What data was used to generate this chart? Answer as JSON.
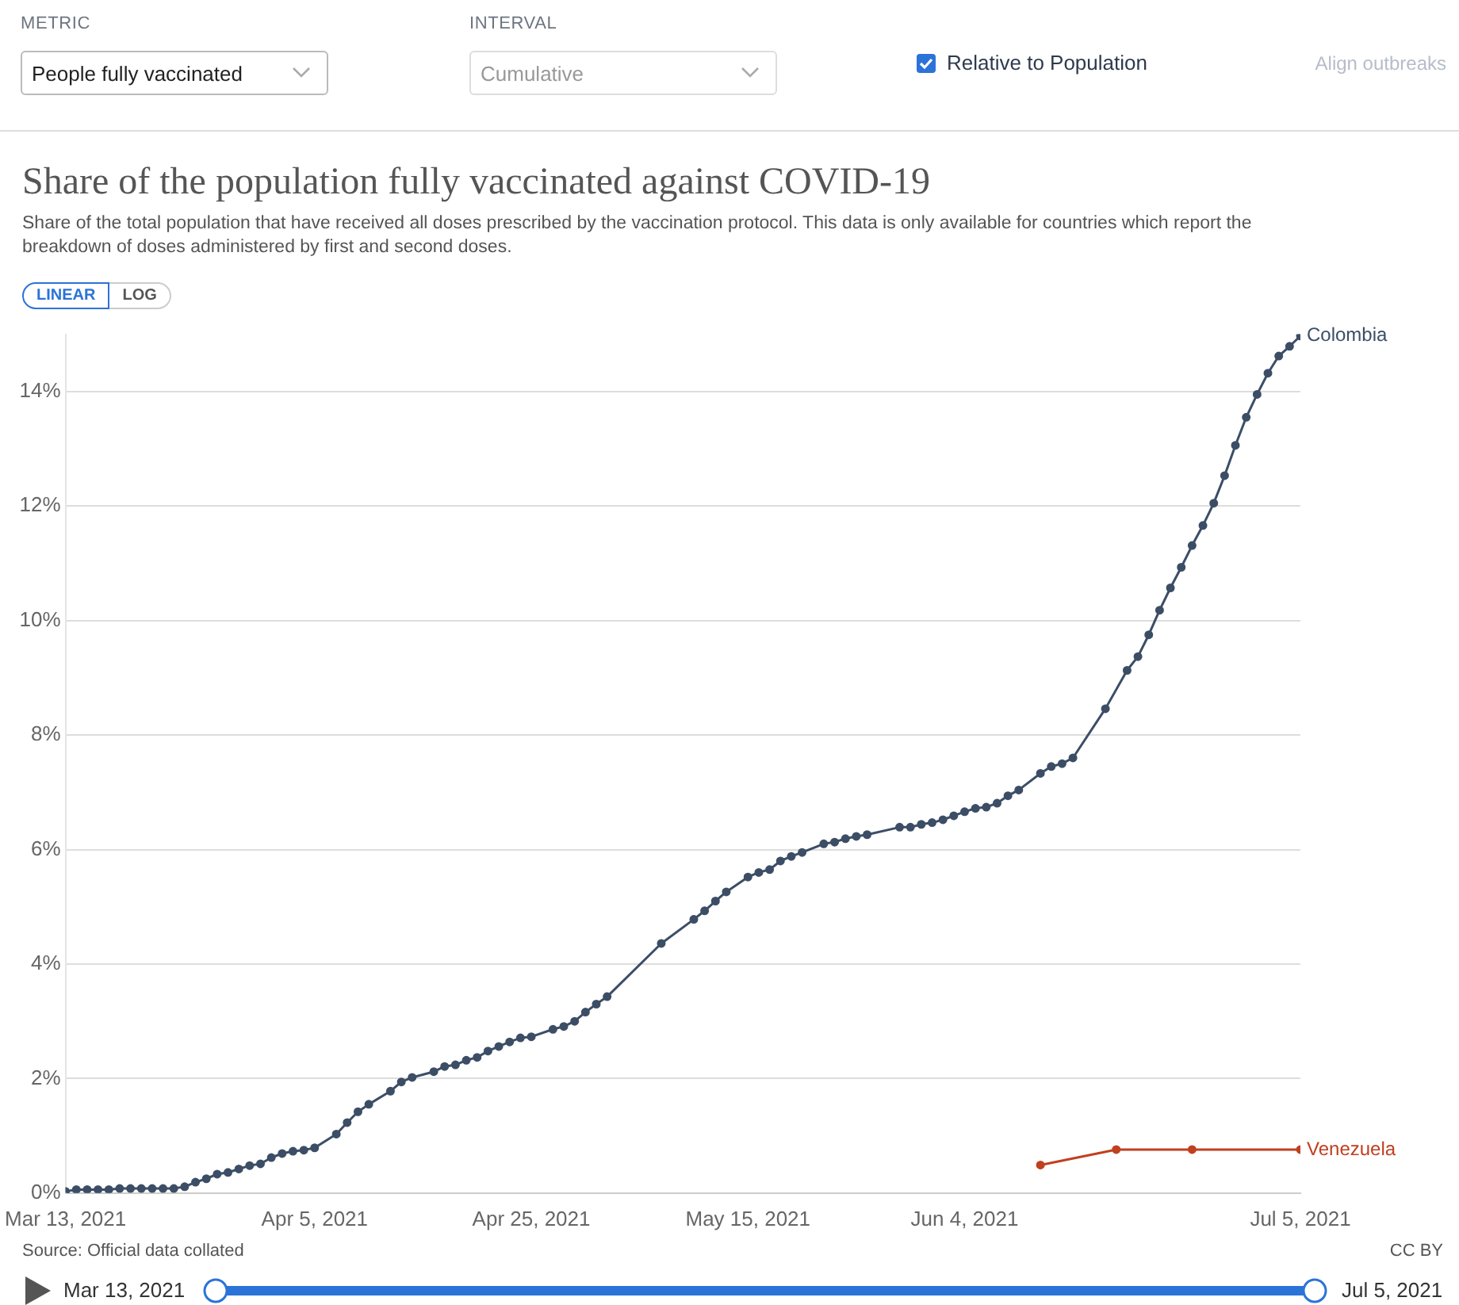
{
  "chart_data": {
    "type": "line",
    "title": "Share of the population fully vaccinated against COVID-19",
    "subtitle": "Share of the total population that have received all doses prescribed by the vaccination protocol. This data is only available for countries which report the breakdown of doses administered by first and second doses.",
    "annotations": [
      "METRIC",
      "People fully vaccinated",
      "INTERVAL",
      "Cumulative",
      "Relative to Population",
      "Align outbreaks",
      "LINEAR",
      "LOG",
      "Source: Official data collated",
      "CC BY",
      "Mar 13, 2021",
      "Jul 5, 2021"
    ],
    "series": [
      {
        "name": "Colombia",
        "color": "#3c4e66",
        "x": [
          "2021-03-13",
          "2021-03-14",
          "2021-03-15",
          "2021-03-16",
          "2021-03-17",
          "2021-03-18",
          "2021-03-19",
          "2021-03-20",
          "2021-03-21",
          "2021-03-22",
          "2021-03-23",
          "2021-03-24",
          "2021-03-25",
          "2021-03-26",
          "2021-03-27",
          "2021-03-28",
          "2021-03-29",
          "2021-03-30",
          "2021-03-31",
          "2021-04-01",
          "2021-04-02",
          "2021-04-03",
          "2021-04-04",
          "2021-04-05",
          "2021-04-07",
          "2021-04-08",
          "2021-04-09",
          "2021-04-10",
          "2021-04-12",
          "2021-04-13",
          "2021-04-14",
          "2021-04-16",
          "2021-04-17",
          "2021-04-18",
          "2021-04-19",
          "2021-04-20",
          "2021-04-21",
          "2021-04-22",
          "2021-04-23",
          "2021-04-24",
          "2021-04-25",
          "2021-04-27",
          "2021-04-28",
          "2021-04-29",
          "2021-04-30",
          "2021-05-01",
          "2021-05-02",
          "2021-05-07",
          "2021-05-10",
          "2021-05-11",
          "2021-05-12",
          "2021-05-13",
          "2021-05-15",
          "2021-05-16",
          "2021-05-17",
          "2021-05-18",
          "2021-05-19",
          "2021-05-20",
          "2021-05-22",
          "2021-05-23",
          "2021-05-24",
          "2021-05-25",
          "2021-05-26",
          "2021-05-29",
          "2021-05-30",
          "2021-05-31",
          "2021-06-01",
          "2021-06-02",
          "2021-06-03",
          "2021-06-04",
          "2021-06-05",
          "2021-06-06",
          "2021-06-07",
          "2021-06-08",
          "2021-06-09",
          "2021-06-11",
          "2021-06-12",
          "2021-06-13",
          "2021-06-14",
          "2021-06-17",
          "2021-06-19",
          "2021-06-20",
          "2021-06-21",
          "2021-06-22",
          "2021-06-23",
          "2021-06-24",
          "2021-06-25",
          "2021-06-26",
          "2021-06-27",
          "2021-06-28",
          "2021-06-29",
          "2021-06-30",
          "2021-07-01",
          "2021-07-02",
          "2021-07-03",
          "2021-07-04",
          "2021-07-05"
        ],
        "values": [
          0.03,
          0.06,
          0.06,
          0.06,
          0.06,
          0.08,
          0.08,
          0.08,
          0.08,
          0.08,
          0.08,
          0.11,
          0.19,
          0.25,
          0.33,
          0.36,
          0.42,
          0.48,
          0.51,
          0.62,
          0.69,
          0.73,
          0.75,
          0.79,
          1.03,
          1.23,
          1.42,
          1.55,
          1.78,
          1.94,
          2.02,
          2.12,
          2.21,
          2.24,
          2.32,
          2.37,
          2.48,
          2.56,
          2.64,
          2.71,
          2.73,
          2.86,
          2.91,
          3.0,
          3.16,
          3.3,
          3.43,
          4.36,
          4.78,
          4.93,
          5.1,
          5.26,
          5.52,
          5.6,
          5.65,
          5.8,
          5.88,
          5.95,
          6.1,
          6.13,
          6.19,
          6.23,
          6.26,
          6.39,
          6.39,
          6.44,
          6.47,
          6.52,
          6.59,
          6.66,
          6.72,
          6.74,
          6.81,
          6.94,
          7.04,
          7.33,
          7.45,
          7.5,
          7.6,
          8.46,
          9.13,
          9.37,
          9.75,
          10.18,
          10.57,
          10.93,
          11.31,
          11.66,
          12.05,
          12.53,
          13.06,
          13.55,
          13.95,
          14.32,
          14.62,
          14.79,
          14.97
        ]
      },
      {
        "name": "Venezuela",
        "color": "#c0401f",
        "x": [
          "2021-06-11",
          "2021-06-18",
          "2021-06-25",
          "2021-07-05"
        ],
        "values": [
          0.49,
          0.76,
          0.76,
          0.76
        ]
      }
    ],
    "xlim": [
      "2021-03-13",
      "2021-07-05"
    ],
    "xticks": [
      {
        "value": "2021-03-13",
        "label": "Mar 13, 2021"
      },
      {
        "value": "2021-04-05",
        "label": "Apr 5, 2021"
      },
      {
        "value": "2021-04-25",
        "label": "Apr 25, 2021"
      },
      {
        "value": "2021-05-15",
        "label": "May 15, 2021"
      },
      {
        "value": "2021-06-04",
        "label": "Jun 4, 2021"
      },
      {
        "value": "2021-07-05",
        "label": "Jul 5, 2021"
      }
    ],
    "ylim": [
      0,
      15
    ],
    "yticks": [
      {
        "value": 0,
        "label": "0%"
      },
      {
        "value": 2,
        "label": "2%"
      },
      {
        "value": 4,
        "label": "4%"
      },
      {
        "value": 6,
        "label": "6%"
      },
      {
        "value": 8,
        "label": "8%"
      },
      {
        "value": 10,
        "label": "10%"
      },
      {
        "value": 12,
        "label": "12%"
      },
      {
        "value": 14,
        "label": "14%"
      }
    ],
    "grid": "y",
    "legend": false,
    "marker": "circle",
    "line_style": "solid"
  }
}
